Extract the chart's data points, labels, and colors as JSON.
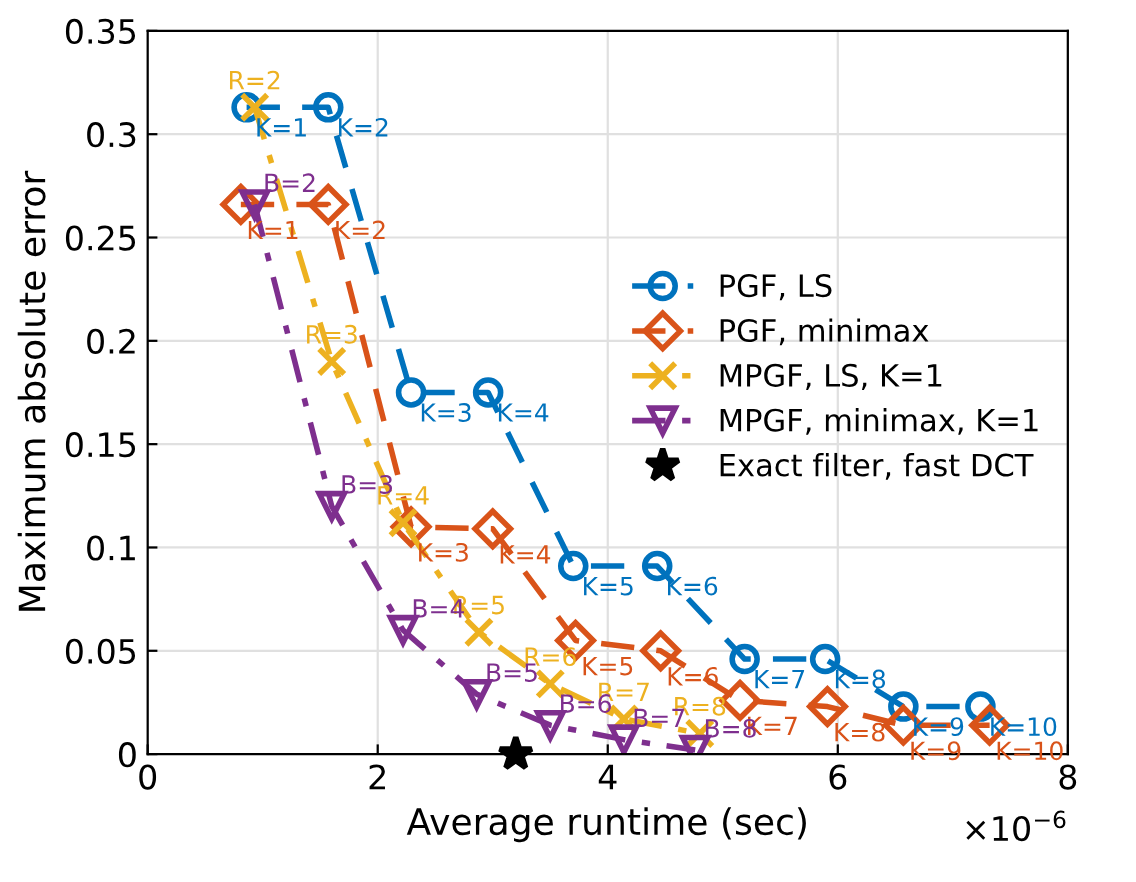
{
  "chart_data": {
    "type": "line",
    "xlabel": "Average runtime (sec)",
    "ylabel": "Maximum absolute error",
    "xlim": [
      0,
      8
    ],
    "ylim": [
      0,
      0.35
    ],
    "xticks": [
      0,
      2,
      4,
      6,
      8
    ],
    "yticks": [
      0,
      0.05,
      0.1,
      0.15,
      0.2,
      0.25,
      0.3,
      0.35
    ],
    "grid": true,
    "legend": "right",
    "series": [
      {
        "name": "PGF, LS",
        "color": "#0072bd",
        "marker": "circle",
        "line_style": "dashed",
        "x": [
          0.86,
          1.57,
          2.29,
          2.96,
          3.7,
          4.43,
          5.19,
          5.89,
          6.57,
          7.24
        ],
        "values": [
          0.313,
          0.313,
          0.175,
          0.175,
          0.091,
          0.091,
          0.046,
          0.046,
          0.023,
          0.023
        ]
      },
      {
        "name": "PGF, minimax",
        "color": "#d95319",
        "marker": "diamond",
        "line_style": "dashed",
        "x": [
          0.81,
          1.57,
          2.29,
          3.0,
          3.72,
          4.46,
          5.15,
          5.91,
          6.57,
          7.32
        ],
        "values": [
          0.266,
          0.266,
          0.11,
          0.109,
          0.055,
          0.05,
          0.026,
          0.023,
          0.014,
          0.014
        ]
      },
      {
        "name": "MPGF, LS, K=1",
        "color": "#edb120",
        "marker": "cross",
        "line_style": "dashdot",
        "x": [
          0.93,
          1.6,
          2.22,
          2.88,
          3.5,
          4.14,
          4.8
        ],
        "values": [
          0.313,
          0.19,
          0.112,
          0.059,
          0.034,
          0.017,
          0.01
        ]
      },
      {
        "name": "MPGF, minimax, K=1",
        "color": "#7e2f8e",
        "marker": "triangle",
        "line_style": "dashdot",
        "x": [
          0.93,
          1.6,
          2.22,
          2.86,
          3.5,
          4.14,
          4.76
        ],
        "values": [
          0.266,
          0.12,
          0.06,
          0.029,
          0.014,
          0.007,
          0.002
        ]
      },
      {
        "name": "Exact filter, fast DCT",
        "type": "scatter",
        "color": "#000000",
        "marker": "star",
        "x": [
          3.2
        ],
        "values": [
          0
        ]
      }
    ],
    "annotations": [
      {
        "text": "K=1",
        "x": 0.86,
        "y": 0.313
      },
      {
        "text": "K=2",
        "x": 1.57,
        "y": 0.313
      },
      {
        "text": "K=3",
        "x": 2.29,
        "y": 0.175
      },
      {
        "text": "K=4",
        "x": 2.96,
        "y": 0.175
      },
      {
        "text": "K=5",
        "x": 3.7,
        "y": 0.091
      },
      {
        "text": "K=6",
        "x": 4.43,
        "y": 0.091
      },
      {
        "text": "K=7",
        "x": 5.19,
        "y": 0.046
      },
      {
        "text": "K=8",
        "x": 5.89,
        "y": 0.046
      },
      {
        "text": "K=9",
        "x": 6.57,
        "y": 0.023
      },
      {
        "text": "K=10",
        "x": 7.24,
        "y": 0.023
      },
      {
        "text": "K=1",
        "x": 0.81,
        "y": 0.266
      },
      {
        "text": "K=2",
        "x": 1.57,
        "y": 0.266
      },
      {
        "text": "K=3",
        "x": 2.29,
        "y": 0.11
      },
      {
        "text": "K=4",
        "x": 3.0,
        "y": 0.109
      },
      {
        "text": "K=5",
        "x": 3.72,
        "y": 0.055
      },
      {
        "text": "K=6",
        "x": 4.46,
        "y": 0.05
      },
      {
        "text": "K=7",
        "x": 5.15,
        "y": 0.026
      },
      {
        "text": "K=8",
        "x": 5.91,
        "y": 0.023
      },
      {
        "text": "K=9",
        "x": 6.57,
        "y": 0.014
      },
      {
        "text": "K=10",
        "x": 7.32,
        "y": 0.014
      },
      {
        "text": "R=2",
        "x": 0.93,
        "y": 0.313
      },
      {
        "text": "R=3",
        "x": 1.6,
        "y": 0.19
      },
      {
        "text": "R=4",
        "x": 2.22,
        "y": 0.112
      },
      {
        "text": "R=5",
        "x": 2.88,
        "y": 0.059
      },
      {
        "text": "R=6",
        "x": 3.5,
        "y": 0.034
      },
      {
        "text": "R=7",
        "x": 4.14,
        "y": 0.017
      },
      {
        "text": "R=8",
        "x": 4.8,
        "y": 0.01
      },
      {
        "text": "B=2",
        "x": 0.93,
        "y": 0.266
      },
      {
        "text": "B=3",
        "x": 1.6,
        "y": 0.12
      },
      {
        "text": "B=4",
        "x": 2.22,
        "y": 0.06
      },
      {
        "text": "B=5",
        "x": 2.86,
        "y": 0.029
      },
      {
        "text": "B=6",
        "x": 3.5,
        "y": 0.014
      },
      {
        "text": "B=7",
        "x": 4.14,
        "y": 0.007
      },
      {
        "text": "B=8",
        "x": 4.76,
        "y": 0.002
      },
      "×10$^{−6}$"
    ]
  }
}
